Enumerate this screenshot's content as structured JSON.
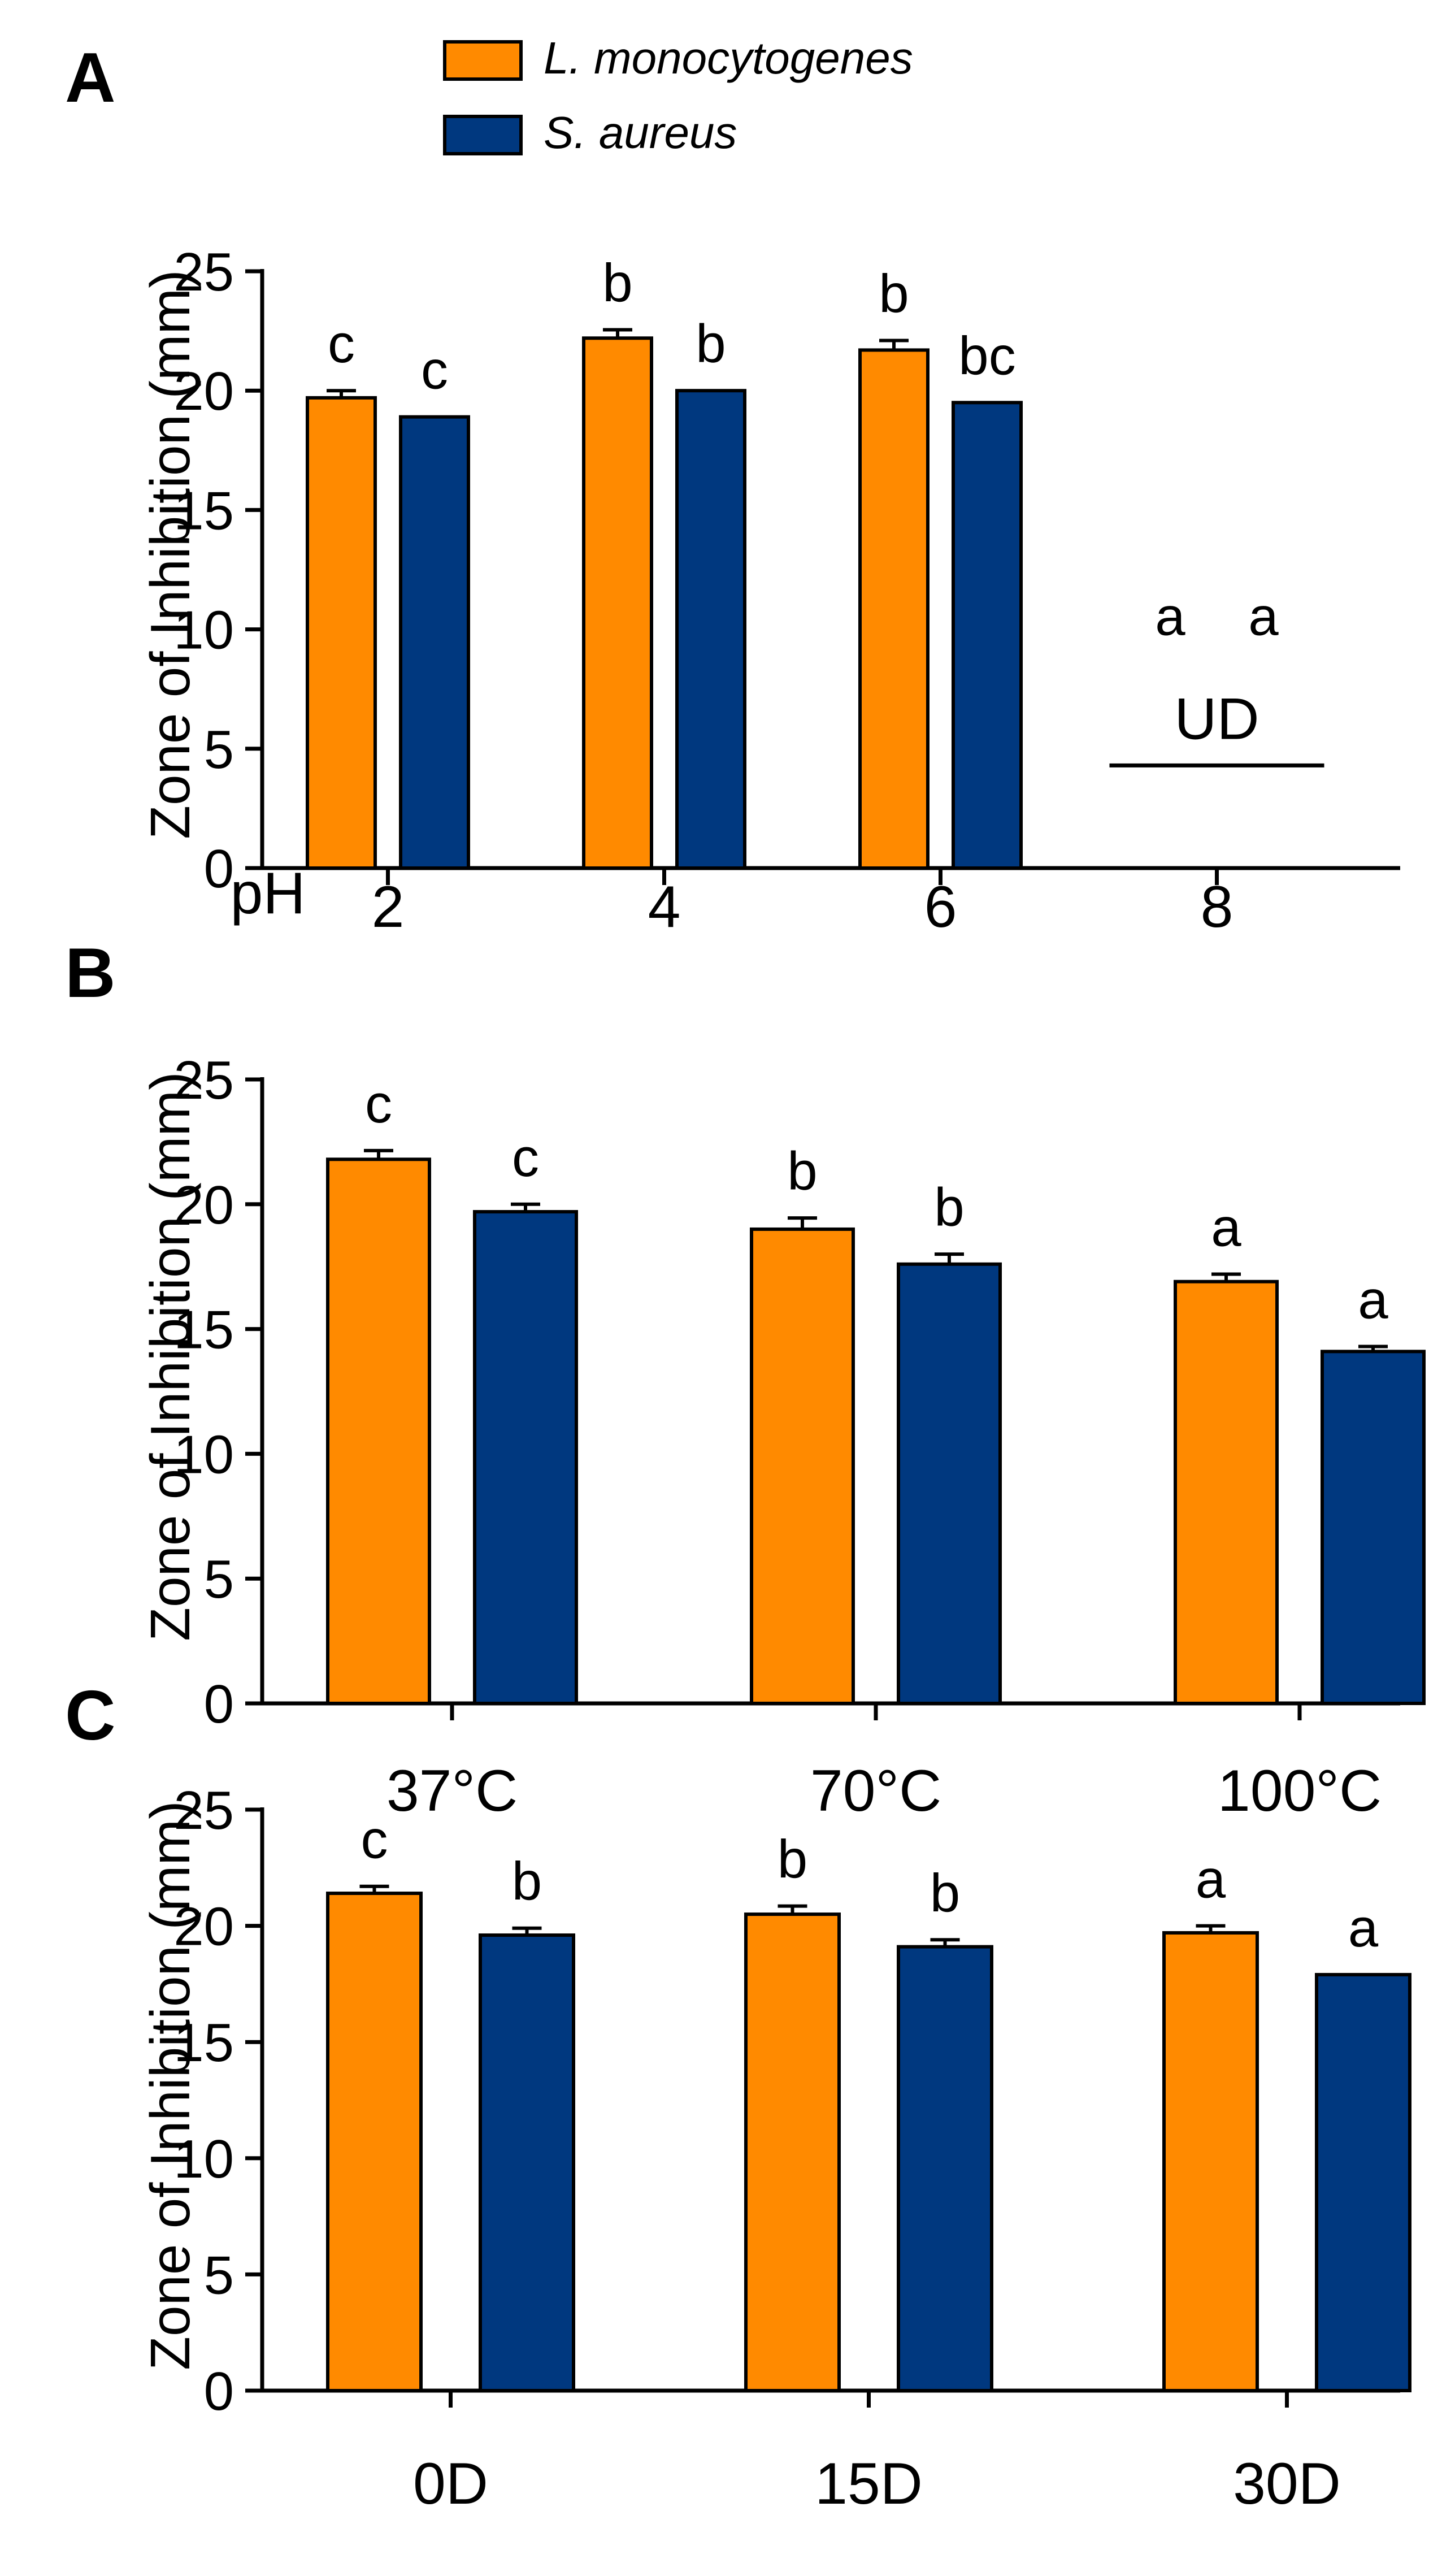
{
  "legend": {
    "entries": [
      {
        "label": "L. monocytogenes",
        "color": "#FF8A00"
      },
      {
        "label": "S. aureus",
        "color": "#00387F"
      }
    ]
  },
  "chart_data": [
    {
      "panel": "A",
      "type": "bar",
      "ylabel": "Zone of Inhibition (mm)",
      "xlabel": "pH",
      "ylim": [
        0,
        25
      ],
      "yticks": [
        0,
        5,
        10,
        15,
        20,
        25
      ],
      "categories": [
        "2",
        "4",
        "6",
        "8"
      ],
      "series": [
        {
          "name": "L. monocytogenes",
          "color": "#FF8A00",
          "values": [
            19.7,
            22.2,
            21.7,
            0
          ],
          "errors": [
            0.3,
            0.35,
            0.4,
            0
          ],
          "letters": [
            "c",
            "b",
            "b",
            "a"
          ]
        },
        {
          "name": "S. aureus",
          "color": "#00387F",
          "values": [
            18.9,
            20.0,
            19.5,
            0
          ],
          "errors": [
            0,
            0,
            0,
            0
          ],
          "letters": [
            "c",
            "b",
            "bc",
            "a"
          ]
        }
      ],
      "annotations": [
        {
          "text": "UD",
          "category": "8",
          "y": 5.5,
          "line_y": 4.3
        }
      ]
    },
    {
      "panel": "B",
      "type": "bar",
      "ylabel": "Zone of Inhibition (mm)",
      "xlabel": "",
      "ylim": [
        0,
        25
      ],
      "yticks": [
        0,
        5,
        10,
        15,
        20,
        25
      ],
      "categories": [
        "37°C",
        "70°C",
        "100°C"
      ],
      "series": [
        {
          "name": "L. monocytogenes",
          "color": "#FF8A00",
          "values": [
            21.8,
            19.0,
            16.9
          ],
          "errors": [
            0.35,
            0.45,
            0.3
          ],
          "letters": [
            "c",
            "b",
            "a"
          ]
        },
        {
          "name": "S. aureus",
          "color": "#00387F",
          "values": [
            19.7,
            17.6,
            14.1
          ],
          "errors": [
            0.3,
            0.4,
            0.2
          ],
          "letters": [
            "c",
            "b",
            "a"
          ]
        }
      ],
      "annotations": []
    },
    {
      "panel": "C",
      "type": "bar",
      "ylabel": "Zone of Inhibition (mm)",
      "xlabel": "",
      "ylim": [
        0,
        25
      ],
      "yticks": [
        0,
        5,
        10,
        15,
        20,
        25
      ],
      "categories": [
        "0D",
        "15D",
        "30D"
      ],
      "series": [
        {
          "name": "L. monocytogenes",
          "color": "#FF8A00",
          "values": [
            21.4,
            20.5,
            19.7
          ],
          "errors": [
            0.3,
            0.35,
            0.3
          ],
          "letters": [
            "c",
            "b",
            "a"
          ]
        },
        {
          "name": "S. aureus",
          "color": "#00387F",
          "values": [
            19.6,
            19.1,
            17.9
          ],
          "errors": [
            0.3,
            0.3,
            0
          ],
          "letters": [
            "b",
            "b",
            "a"
          ]
        }
      ],
      "annotations": []
    }
  ]
}
